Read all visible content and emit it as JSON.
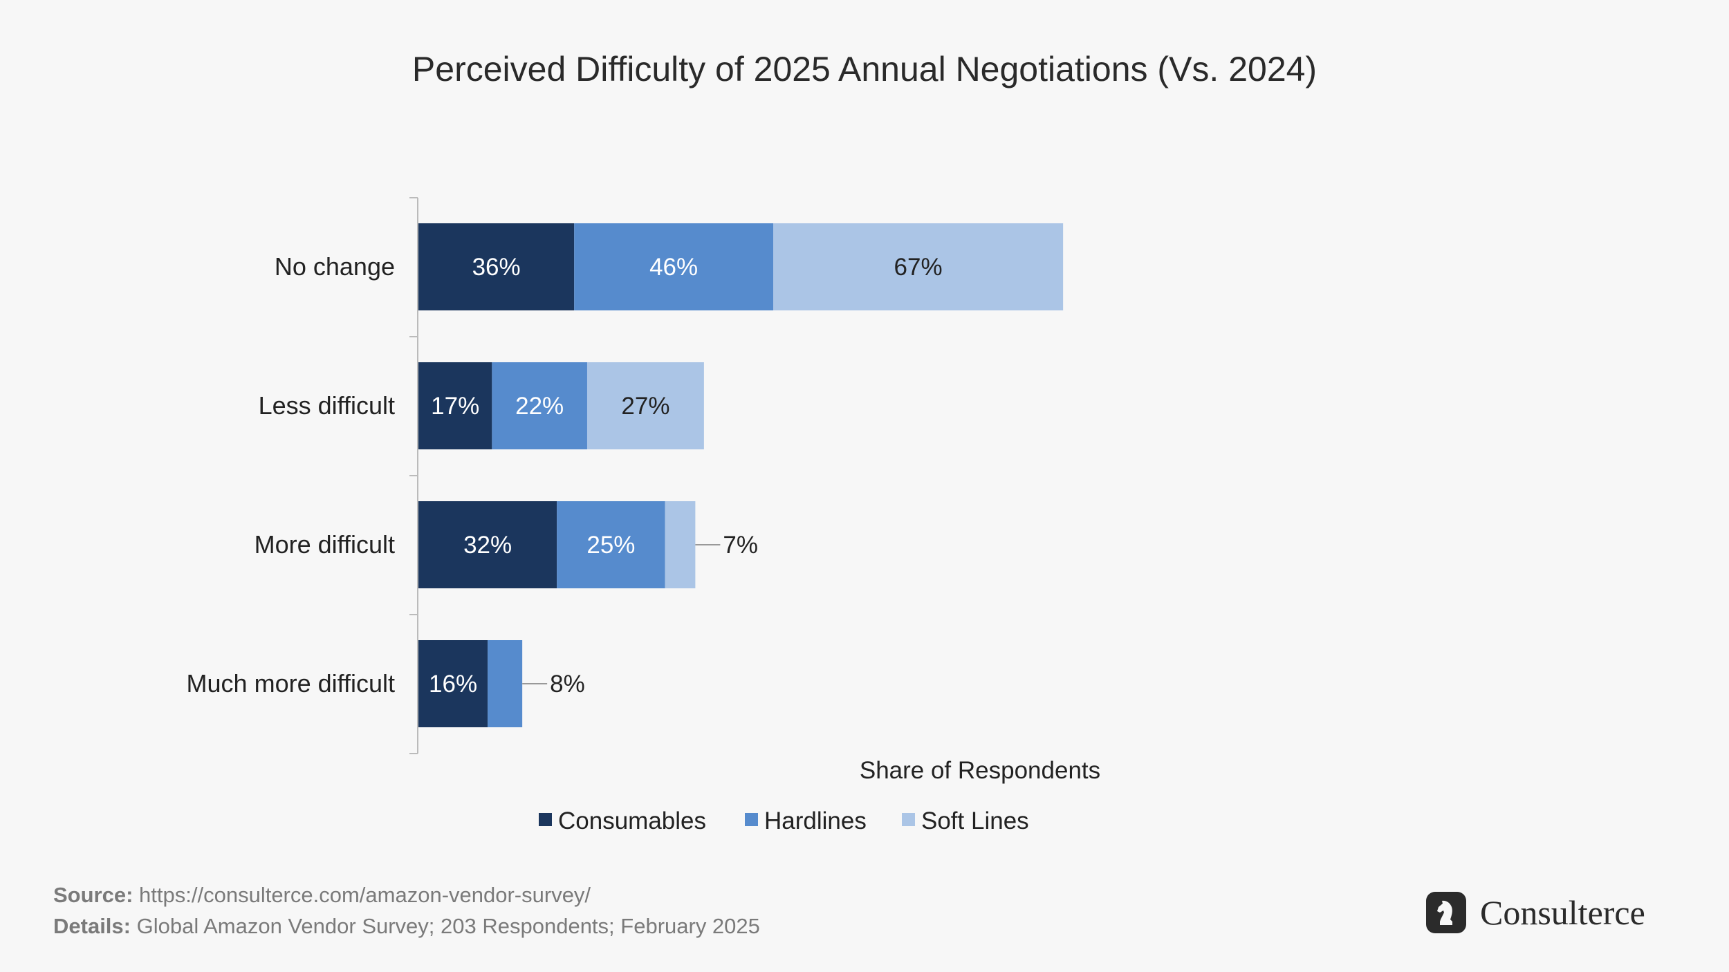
{
  "chart_data": {
    "type": "bar",
    "orientation": "horizontal",
    "stacked": true,
    "title": "Perceived Difficulty of 2025 Annual Negotiations (Vs. 2024)",
    "xlabel": "Share of Respondents",
    "ylabel": "",
    "categories": [
      "No change",
      "Less difficult",
      "More difficult",
      "Much more difficult"
    ],
    "series": [
      {
        "name": "Consumables",
        "color": "#1b365d",
        "values": [
          36,
          17,
          32,
          16
        ],
        "label_color": "#ffffff"
      },
      {
        "name": "Hardlines",
        "color": "#568bcd",
        "values": [
          46,
          22,
          25,
          8
        ],
        "label_color": "#ffffff"
      },
      {
        "name": "Soft Lines",
        "color": "#abc5e6",
        "values": [
          67,
          27,
          7,
          null
        ],
        "label_color": "#222222"
      }
    ],
    "value_suffix": "%",
    "grid": false,
    "legend_position": "bottom"
  },
  "footer": {
    "source_label": "Source:",
    "source_text": "https://consulterce.com/amazon-vendor-survey/",
    "details_label": "Details:",
    "details_text": "Global Amazon Vendor Survey; 203 Respondents; February 2025"
  },
  "brand": {
    "name": "Consulterce",
    "icon": "chess-knight-icon"
  }
}
